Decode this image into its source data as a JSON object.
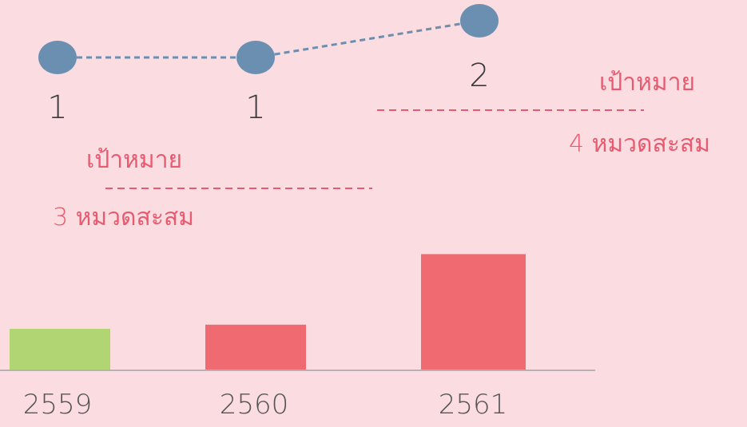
{
  "chart_data": {
    "type": "bar",
    "categories": [
      "2559",
      "2560",
      "2561"
    ],
    "bar_values": [
      1.0,
      1.1,
      2.8
    ],
    "bar_colors": [
      "#b0d572",
      "#f06a72",
      "#f06a72"
    ],
    "line_series": {
      "values": [
        1,
        1,
        2
      ],
      "labels": [
        "1",
        "1",
        "2"
      ],
      "color": "#6b8fb0"
    },
    "targets": [
      {
        "title": "เป้าหมาย",
        "subtitle": "3 หมวดสะสม"
      },
      {
        "title": "เป้าหมาย",
        "subtitle": "4 หมวดสะสม"
      }
    ],
    "grid": false,
    "legend": "none"
  },
  "colors": {
    "background": "#fbdde1",
    "target_text": "#e85a6f",
    "axis": "#b8b0b2"
  }
}
